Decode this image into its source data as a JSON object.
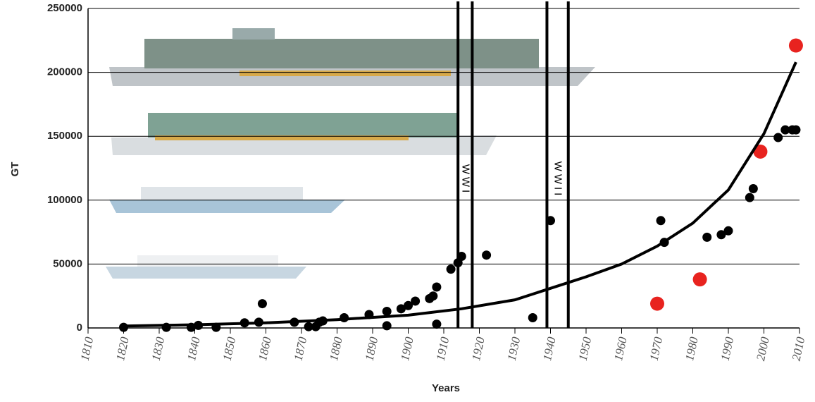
{
  "chart_data": {
    "type": "scatter",
    "y_label": "GT",
    "x_label": "Years",
    "xlim": [
      1810,
      2010
    ],
    "ylim": [
      0,
      250000
    ],
    "xticks": [
      1810,
      1820,
      1830,
      1840,
      1850,
      1860,
      1870,
      1880,
      1890,
      1900,
      1910,
      1920,
      1930,
      1940,
      1950,
      1960,
      1970,
      1980,
      1990,
      2000,
      2010
    ],
    "yticks": [
      0,
      50000,
      100000,
      150000,
      200000,
      250000
    ],
    "grid": true,
    "series": [
      {
        "type": "scatter",
        "color": "#000000",
        "x": [
          1820,
          1832,
          1839,
          1841,
          1846,
          1854,
          1858,
          1859,
          1868,
          1872,
          1874,
          1875,
          1876,
          1882,
          1889,
          1894,
          1894,
          1898,
          1900,
          1902,
          1906,
          1907,
          1908,
          1908,
          1912,
          1914,
          1915,
          1922,
          1935,
          1940,
          1971,
          1972,
          1984,
          1988,
          1990,
          1996,
          1997,
          2004,
          2006,
          2008,
          2009
        ],
        "values": [
          500,
          500,
          500,
          2000,
          500,
          4000,
          4500,
          19000,
          4500,
          1000,
          1000,
          4500,
          5500,
          8000,
          10500,
          13000,
          1700,
          15000,
          17500,
          21000,
          23000,
          25000,
          32000,
          3000,
          46000,
          51000,
          56000,
          57000,
          8000,
          84000,
          84000,
          67000,
          71000,
          73000,
          76000,
          102000,
          109000,
          149000,
          155000,
          155000,
          155000
        ]
      },
      {
        "type": "scatter",
        "color": "#e8231f",
        "x": [
          1970,
          1982,
          1999,
          2009
        ],
        "values": [
          19000,
          38000,
          138000,
          221000
        ]
      },
      {
        "type": "line",
        "color": "#000000",
        "x": [
          1820,
          1840,
          1860,
          1880,
          1900,
          1915,
          1930,
          1940,
          1950,
          1960,
          1970,
          1980,
          1990,
          2000,
          2009
        ],
        "values": [
          1500,
          2500,
          4000,
          6500,
          10000,
          15000,
          22000,
          31000,
          40000,
          50000,
          64000,
          82000,
          108000,
          152000,
          208000
        ]
      }
    ],
    "war_lines": [
      1914,
      1918,
      1939,
      1945
    ],
    "annotations": [
      {
        "text": "WWI",
        "x": 1916
      },
      {
        "text": "WWII",
        "x": 1942
      }
    ]
  }
}
